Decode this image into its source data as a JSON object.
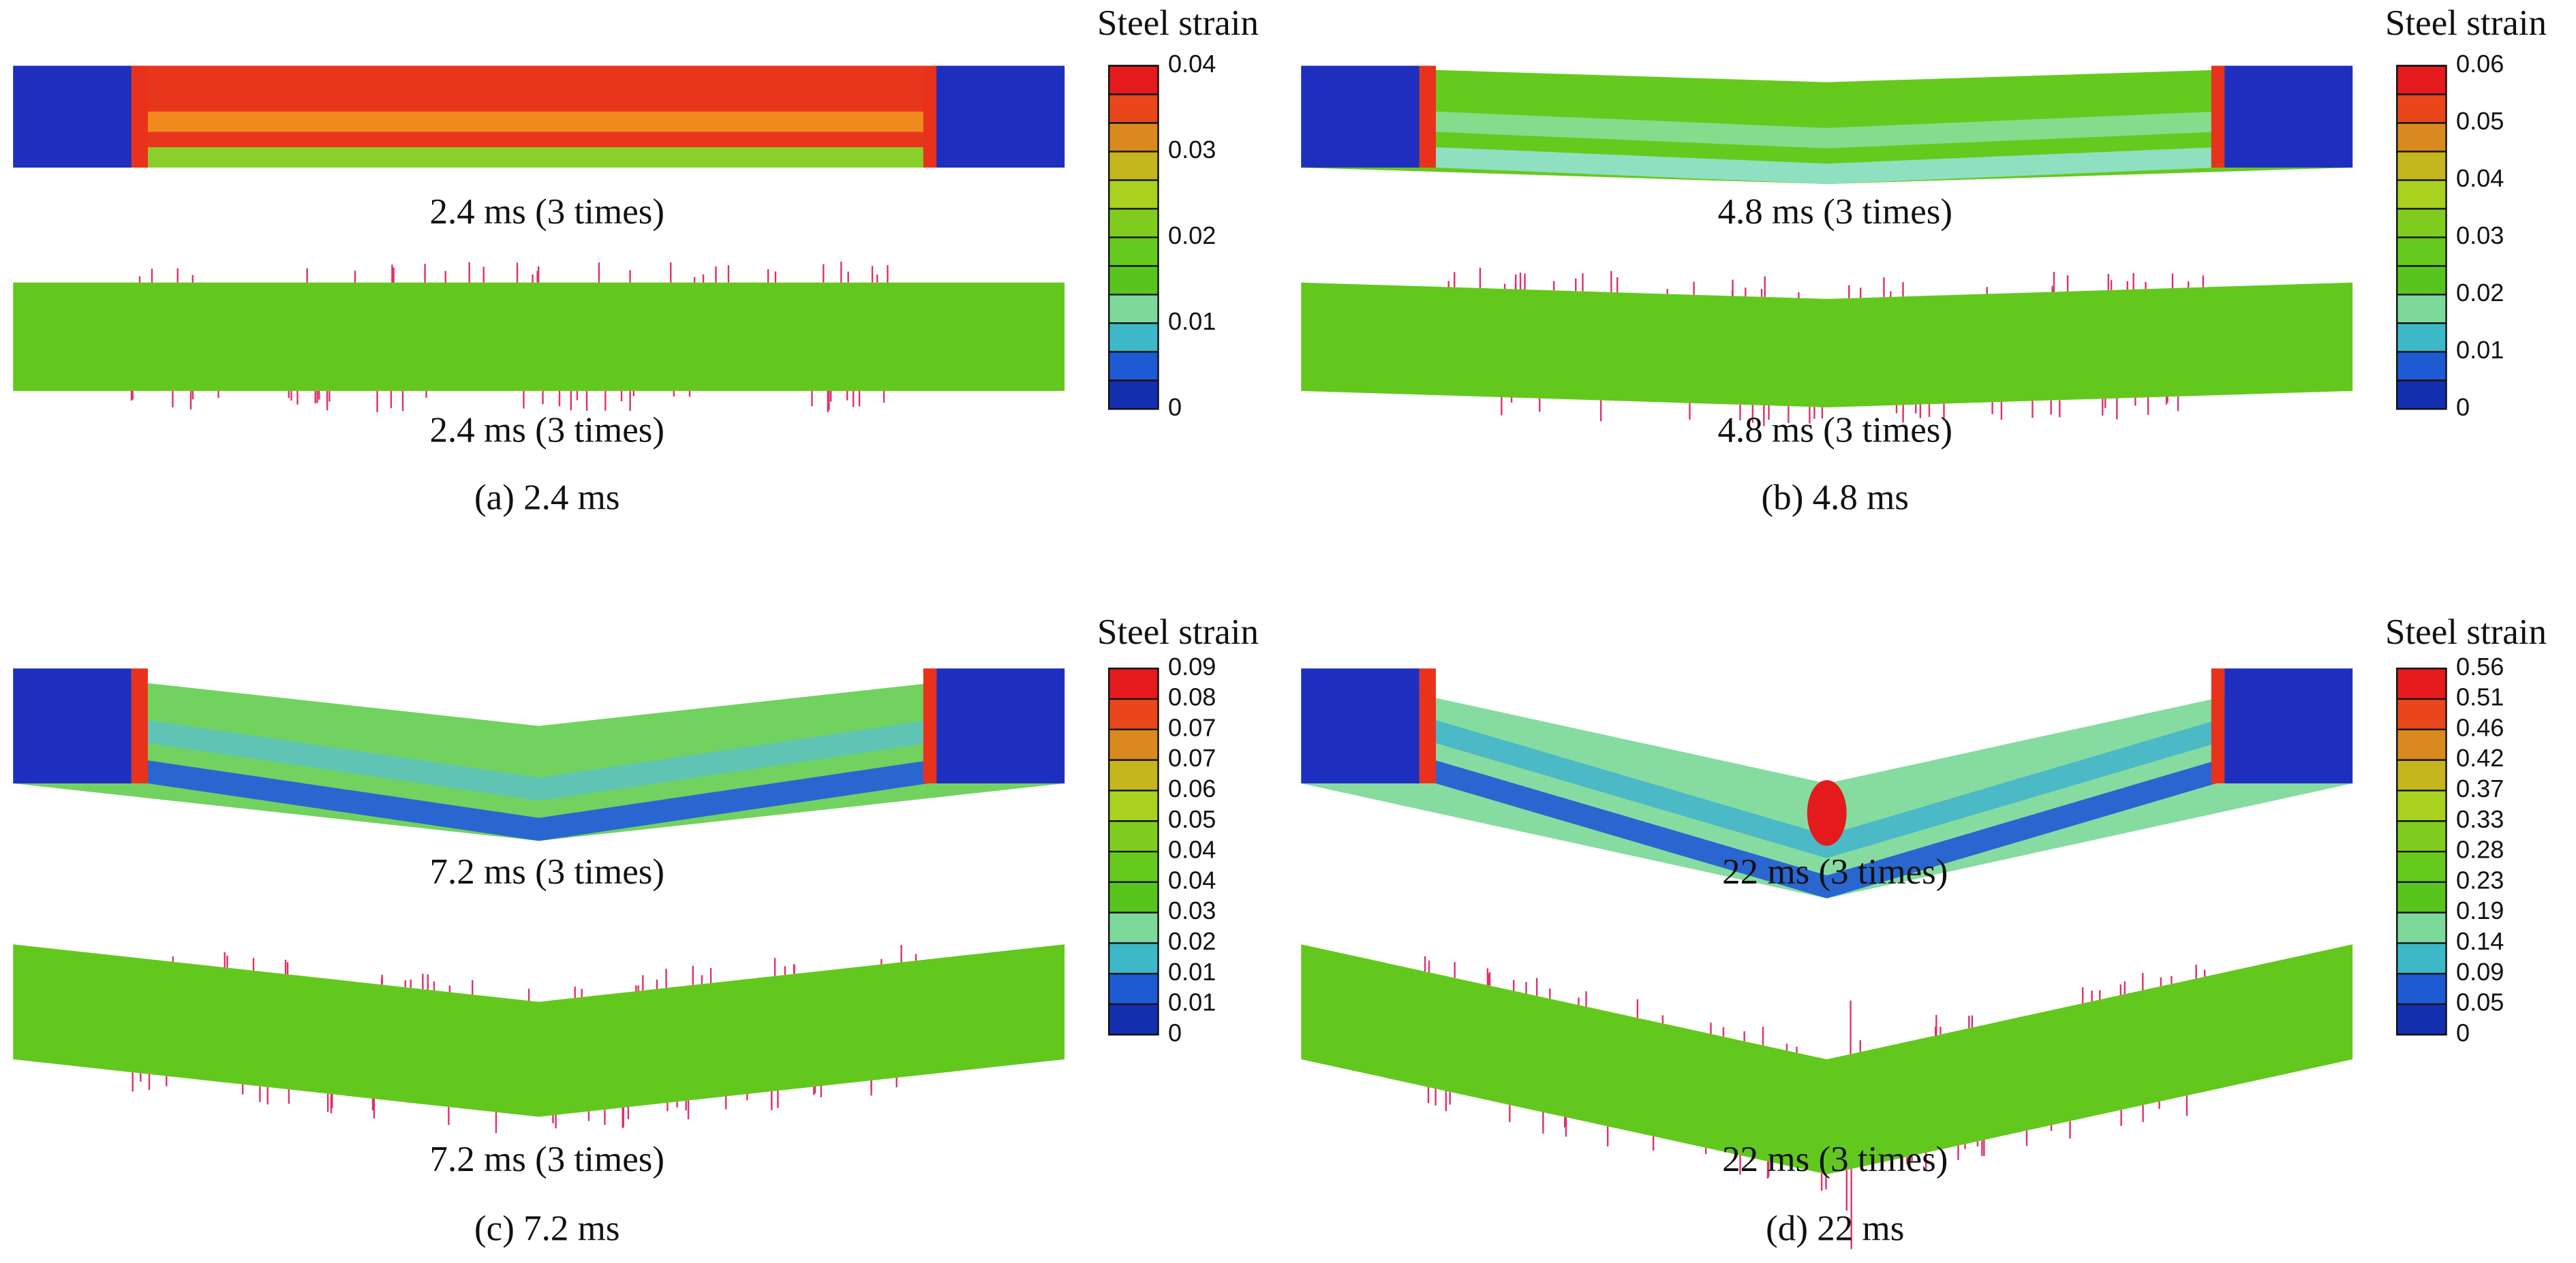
{
  "panels": [
    {
      "legend_title": "Steel strain",
      "legend_labels": [
        0.04,
        0.03,
        0.02,
        0.01,
        0
      ],
      "top_caption": "2.4 ms (3 times)",
      "bottom_caption": "2.4 ms (3 times)",
      "caption": "(a) 2.4 ms"
    },
    {
      "legend_title": "Steel strain",
      "legend_labels": [
        0.06,
        0.05,
        0.04,
        0.03,
        0.02,
        0.01,
        0
      ],
      "top_caption": "4.8 ms (3 times)",
      "bottom_caption": "4.8 ms (3 times)",
      "caption": "(b) 4.8 ms"
    },
    {
      "legend_title": "Steel strain",
      "legend_labels": [
        0.09,
        0.08,
        0.07,
        0.07,
        0.06,
        0.05,
        0.04,
        0.04,
        0.03,
        0.02,
        0.01,
        0.01,
        0
      ],
      "top_caption": "7.2 ms (3 times)",
      "bottom_caption": "7.2 ms (3 times)",
      "caption": "(c) 7.2 ms"
    },
    {
      "legend_title": "Steel strain",
      "legend_labels": [
        0.56,
        0.51,
        0.46,
        0.42,
        0.37,
        0.33,
        0.28,
        0.23,
        0.19,
        0.14,
        0.09,
        0.05,
        0
      ],
      "top_caption": "22 ms (3 times)",
      "bottom_caption": "22 ms (3 times)",
      "caption": "(d) 22 ms"
    }
  ]
}
